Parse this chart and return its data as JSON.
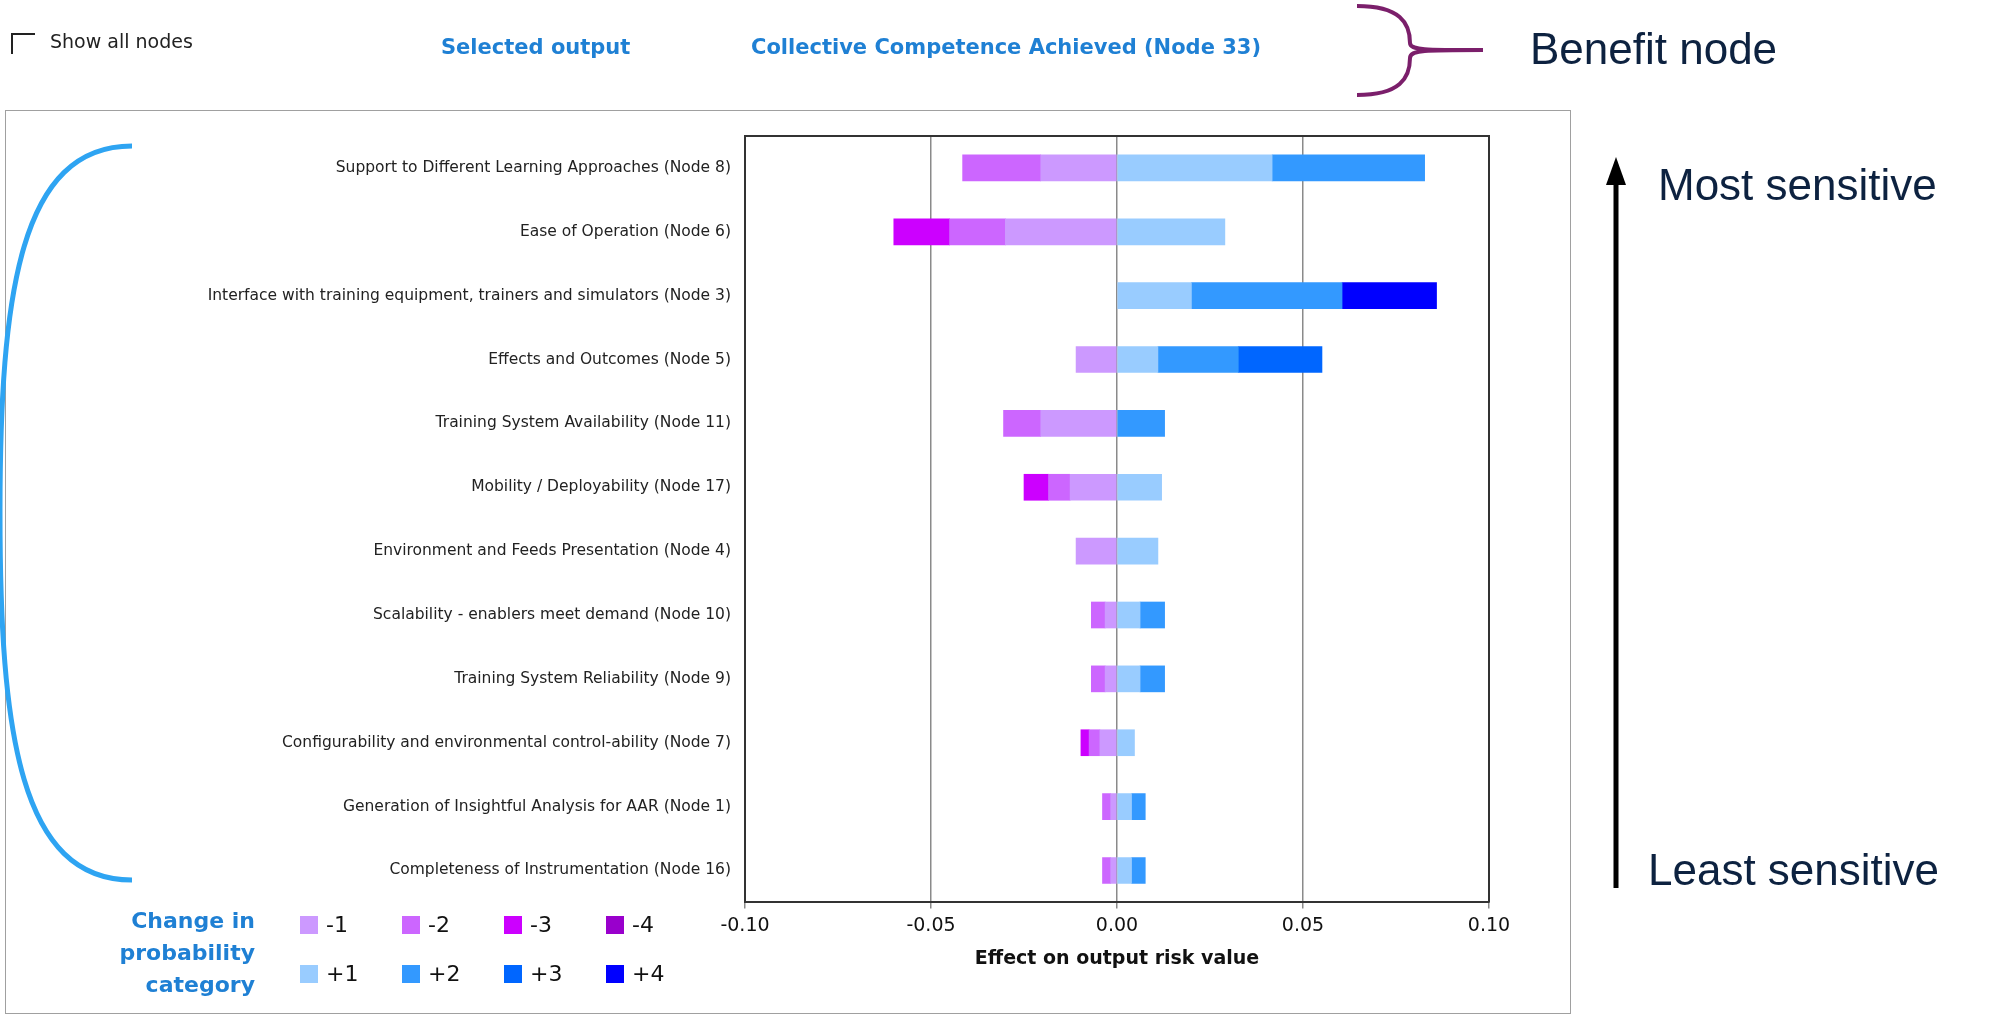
{
  "chart_data": {
    "type": "bar",
    "orientation": "horizontal",
    "stacked": true,
    "title": "Collective Competence Achieved (Node 33)",
    "xlabel": "Effect on output risk value",
    "legend_title": "Change in probability category",
    "legend": "bottom left",
    "grid": "x",
    "categories": [
      "Support to Different Learning Approaches (Node 8)",
      "Ease of Operation (Node 6)",
      "Interface with training equipment, trainers and simulators (Node 3)",
      "Effects and Outcomes (Node 5)",
      "Training System Availability (Node 11)",
      "Mobility / Deployability (Node 17)",
      "Environment and Feeds Presentation (Node 4)",
      "Scalability - enablers meet demand (Node 10)",
      "Training System Reliability (Node 9)",
      "Configurability and environmental control-ability (Node 7)",
      "Generation of Insightful Analysis for AAR (Node 1)",
      "Completeness of Instrumentation (Node 16)"
    ],
    "xlim": [
      -0.1,
      0.1
    ],
    "xticks": [
      {
        "value": -0.1,
        "label": "-0.10"
      },
      {
        "value": -0.05,
        "label": "-0.05"
      },
      {
        "value": 0,
        "label": "0.00"
      },
      {
        "value": 0.05,
        "label": "0.05"
      },
      {
        "value": 0.1,
        "label": "0.10"
      }
    ],
    "series": [
      {
        "name": "-1",
        "color": "#cc99ff",
        "values": [
          -0.0205,
          -0.03,
          null,
          -0.011,
          -0.0205,
          -0.0126,
          -0.011,
          -0.0032,
          -0.0032,
          -0.0046,
          -0.0017,
          -0.0017
        ]
      },
      {
        "name": "-2",
        "color": "#cc66ff",
        "values": [
          -0.021,
          -0.015,
          null,
          null,
          -0.01,
          -0.0058,
          null,
          -0.0037,
          -0.0037,
          -0.0029,
          -0.0022,
          -0.0022
        ]
      },
      {
        "name": "-3",
        "color": "#cc00ff",
        "values": [
          null,
          -0.015,
          null,
          null,
          null,
          -0.0066,
          null,
          null,
          null,
          -0.0022,
          null,
          null
        ]
      },
      {
        "name": "-4",
        "color": "#9900cc",
        "values": [
          null,
          null,
          null,
          null,
          null,
          null,
          null,
          null,
          null,
          null,
          null,
          null
        ]
      },
      {
        "name": "+1",
        "color": "#99ccff",
        "values": [
          0.0417,
          0.029,
          0.02,
          0.011,
          null,
          0.012,
          0.011,
          0.0062,
          0.0062,
          0.0047,
          0.0039,
          0.0039
        ]
      },
      {
        "name": "+2",
        "color": "#3399ff",
        "values": [
          0.041,
          null,
          0.0405,
          0.0216,
          0.0128,
          null,
          null,
          0.0066,
          0.0066,
          null,
          0.0037,
          0.0037
        ]
      },
      {
        "name": "+3",
        "color": "#0066ff",
        "values": [
          null,
          null,
          null,
          0.0225,
          null,
          null,
          null,
          null,
          null,
          null,
          null,
          null
        ]
      },
      {
        "name": "+4",
        "color": "#0000ff",
        "values": [
          null,
          null,
          0.0254,
          null,
          null,
          null,
          null,
          null,
          null,
          null,
          null,
          null
        ]
      }
    ],
    "annotations": [
      "Show all nodes",
      "Selected output",
      "Benefit node",
      "Most sensitive",
      "Least sensitive"
    ]
  }
}
